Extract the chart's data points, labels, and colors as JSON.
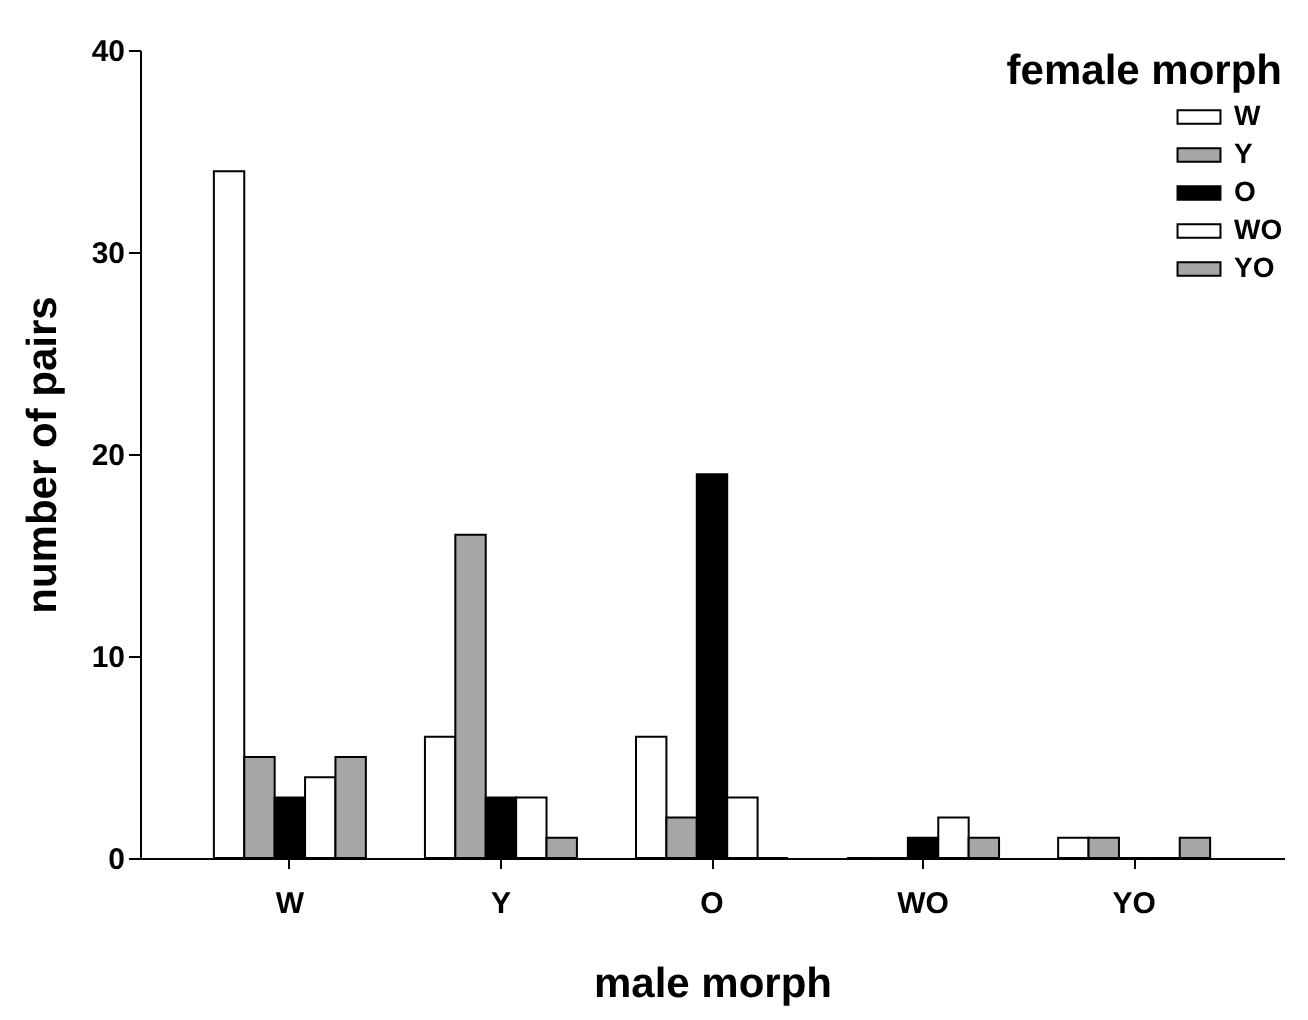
{
  "chart_data": {
    "type": "bar",
    "xlabel": "male morph",
    "ylabel": "number of pairs",
    "legend_title": "female morph",
    "categories": [
      "W",
      "Y",
      "O",
      "WO",
      "YO"
    ],
    "series": [
      {
        "name": "W",
        "color": "#ffffff",
        "values": [
          34,
          6,
          6,
          0,
          1
        ]
      },
      {
        "name": "Y",
        "color": "#a6a6a6",
        "values": [
          5,
          16,
          2,
          0,
          1
        ]
      },
      {
        "name": "O",
        "color": "#000000",
        "values": [
          3,
          3,
          19,
          1,
          0
        ]
      },
      {
        "name": "WO",
        "color": "#ffffff",
        "values": [
          4,
          3,
          3,
          2,
          0
        ]
      },
      {
        "name": "YO",
        "color": "#a6a6a6",
        "values": [
          5,
          1,
          0,
          1,
          1
        ]
      }
    ],
    "ylim": [
      0,
      40
    ],
    "yticks": [
      0,
      10,
      20,
      30,
      40
    ],
    "grid": false,
    "legend": "top right"
  }
}
